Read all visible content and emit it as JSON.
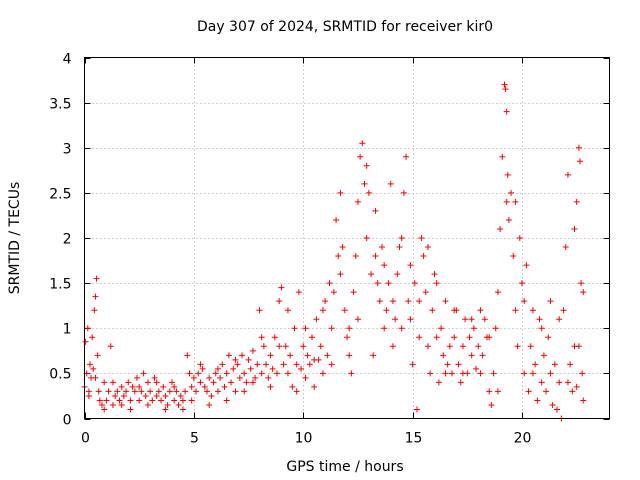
{
  "chart_data": {
    "type": "scatter",
    "title": "Day 307 of 2024, SRMTID for receiver kir0",
    "xlabel": "GPS time / hours",
    "ylabel": "SRMTID / TECUs",
    "xlim": [
      0,
      24.0
    ],
    "ylim": [
      0,
      4
    ],
    "xticks": [
      0,
      5,
      10,
      15,
      20
    ],
    "xtick_labels": [
      "0",
      "5",
      "10",
      "15",
      "20"
    ],
    "yticks": [
      0,
      0.5,
      1,
      1.5,
      2,
      2.5,
      3,
      3.5,
      4
    ],
    "ytick_labels": [
      "0",
      "0.5",
      "1",
      "1.5",
      "2",
      "2.5",
      "3",
      "3.5",
      "4"
    ],
    "grid": true,
    "marker": "+",
    "color": "#ff0000",
    "series": [
      {
        "name": "kir0",
        "points": [
          [
            0.0,
            0.35
          ],
          [
            0.05,
            0.85
          ],
          [
            0.1,
            0.5
          ],
          [
            0.15,
            1.0
          ],
          [
            0.2,
            0.3
          ],
          [
            0.25,
            0.6
          ],
          [
            0.3,
            0.45
          ],
          [
            0.35,
            0.9
          ],
          [
            0.4,
            0.55
          ],
          [
            0.45,
            1.2
          ],
          [
            0.5,
            1.35
          ],
          [
            0.55,
            1.55
          ],
          [
            0.6,
            0.7
          ],
          [
            0.65,
            0.3
          ],
          [
            0.7,
            0.2
          ],
          [
            0.8,
            0.15
          ],
          [
            0.9,
            0.1
          ],
          [
            1.0,
            0.2
          ],
          [
            1.1,
            0.3
          ],
          [
            1.2,
            0.8
          ],
          [
            1.3,
            0.4
          ],
          [
            1.4,
            0.25
          ],
          [
            1.5,
            0.3
          ],
          [
            1.6,
            0.2
          ],
          [
            1.7,
            0.35
          ],
          [
            1.8,
            0.25
          ],
          [
            1.9,
            0.3
          ],
          [
            2.0,
            0.4
          ],
          [
            2.1,
            0.2
          ],
          [
            2.2,
            0.35
          ],
          [
            2.3,
            0.3
          ],
          [
            2.4,
            0.45
          ],
          [
            2.5,
            0.2
          ],
          [
            2.6,
            0.3
          ],
          [
            2.7,
            0.5
          ],
          [
            2.8,
            0.25
          ],
          [
            2.9,
            0.4
          ],
          [
            3.0,
            0.3
          ],
          [
            3.1,
            0.2
          ],
          [
            3.2,
            0.45
          ],
          [
            3.3,
            0.25
          ],
          [
            3.4,
            0.3
          ],
          [
            3.5,
            0.2
          ],
          [
            3.6,
            0.35
          ],
          [
            3.7,
            0.25
          ],
          [
            3.8,
            0.15
          ],
          [
            3.9,
            0.3
          ],
          [
            4.0,
            0.4
          ],
          [
            4.1,
            0.2
          ],
          [
            4.2,
            0.3
          ],
          [
            4.3,
            0.15
          ],
          [
            4.4,
            0.25
          ],
          [
            4.5,
            0.2
          ],
          [
            4.6,
            0.3
          ],
          [
            4.7,
            0.7
          ],
          [
            4.8,
            0.5
          ],
          [
            4.9,
            0.35
          ],
          [
            5.0,
            0.45
          ],
          [
            5.1,
            0.3
          ],
          [
            5.2,
            0.5
          ],
          [
            5.3,
            0.4
          ],
          [
            5.4,
            0.55
          ],
          [
            5.5,
            0.35
          ],
          [
            5.6,
            0.3
          ],
          [
            5.7,
            0.45
          ],
          [
            5.8,
            0.25
          ],
          [
            5.9,
            0.4
          ],
          [
            6.0,
            0.5
          ],
          [
            6.1,
            0.3
          ],
          [
            6.2,
            0.45
          ],
          [
            6.3,
            0.6
          ],
          [
            6.4,
            0.35
          ],
          [
            6.5,
            0.5
          ],
          [
            6.6,
            0.7
          ],
          [
            6.7,
            0.4
          ],
          [
            6.8,
            0.55
          ],
          [
            6.9,
            0.3
          ],
          [
            7.0,
            0.6
          ],
          [
            7.1,
            0.45
          ],
          [
            7.2,
            0.7
          ],
          [
            7.3,
            0.5
          ],
          [
            7.4,
            0.4
          ],
          [
            7.5,
            0.65
          ],
          [
            7.6,
            0.55
          ],
          [
            7.7,
            0.75
          ],
          [
            7.8,
            0.45
          ],
          [
            7.9,
            0.6
          ],
          [
            8.0,
            1.2
          ],
          [
            8.1,
            0.5
          ],
          [
            8.2,
            0.8
          ],
          [
            8.3,
            0.6
          ],
          [
            8.4,
            0.45
          ],
          [
            8.5,
            0.7
          ],
          [
            8.6,
            0.55
          ],
          [
            8.7,
            0.9
          ],
          [
            8.8,
            0.5
          ],
          [
            8.9,
            1.3
          ],
          [
            9.0,
            1.45
          ],
          [
            9.1,
            0.6
          ],
          [
            9.2,
            0.8
          ],
          [
            9.3,
            0.5
          ],
          [
            9.4,
            0.7
          ],
          [
            9.5,
            0.35
          ],
          [
            9.6,
            1.0
          ],
          [
            9.7,
            0.6
          ],
          [
            9.8,
            1.4
          ],
          [
            9.9,
            0.55
          ],
          [
            10.0,
            0.8
          ],
          [
            10.1,
            0.45
          ],
          [
            10.2,
            0.7
          ],
          [
            10.3,
            0.6
          ],
          [
            10.4,
            0.9
          ],
          [
            10.5,
            0.35
          ],
          [
            10.6,
            1.1
          ],
          [
            10.7,
            0.65
          ],
          [
            10.8,
            0.8
          ],
          [
            10.9,
            0.5
          ],
          [
            11.0,
            1.3
          ],
          [
            11.1,
            0.7
          ],
          [
            11.2,
            1.5
          ],
          [
            11.3,
            1.0
          ],
          [
            11.4,
            1.4
          ],
          [
            11.5,
            2.2
          ],
          [
            11.6,
            1.8
          ],
          [
            11.7,
            1.6
          ],
          [
            11.8,
            1.9
          ],
          [
            11.9,
            1.2
          ],
          [
            12.0,
            0.9
          ],
          [
            12.1,
            1.0
          ],
          [
            12.2,
            0.5
          ],
          [
            12.3,
            1.4
          ],
          [
            12.4,
            1.8
          ],
          [
            12.5,
            2.4
          ],
          [
            12.6,
            2.9
          ],
          [
            12.7,
            3.05
          ],
          [
            12.8,
            2.6
          ],
          [
            12.9,
            2.0
          ],
          [
            13.0,
            2.5
          ],
          [
            13.1,
            1.6
          ],
          [
            13.2,
            0.7
          ],
          [
            13.3,
            1.8
          ],
          [
            13.4,
            1.5
          ],
          [
            13.5,
            1.3
          ],
          [
            13.6,
            1.9
          ],
          [
            13.7,
            1.0
          ],
          [
            13.8,
            1.2
          ],
          [
            13.9,
            1.5
          ],
          [
            14.0,
            2.6
          ],
          [
            14.1,
            1.3
          ],
          [
            14.2,
            1.1
          ],
          [
            14.3,
            1.6
          ],
          [
            14.4,
            1.9
          ],
          [
            14.5,
            1.0
          ],
          [
            14.6,
            2.5
          ],
          [
            14.7,
            2.9
          ],
          [
            14.8,
            1.3
          ],
          [
            14.9,
            1.1
          ],
          [
            15.0,
            0.6
          ],
          [
            15.1,
            1.5
          ],
          [
            15.2,
            0.1
          ],
          [
            15.3,
            0.9
          ],
          [
            15.4,
            2.0
          ],
          [
            15.5,
            1.8
          ],
          [
            15.6,
            1.4
          ],
          [
            15.7,
            0.8
          ],
          [
            15.8,
            0.5
          ],
          [
            15.9,
            1.2
          ],
          [
            16.0,
            1.6
          ],
          [
            16.1,
            0.9
          ],
          [
            16.2,
            0.4
          ],
          [
            16.3,
            1.0
          ],
          [
            16.4,
            0.7
          ],
          [
            16.5,
            1.3
          ],
          [
            16.6,
            0.6
          ],
          [
            16.7,
            0.8
          ],
          [
            16.8,
            0.5
          ],
          [
            16.9,
            0.9
          ],
          [
            17.0,
            1.2
          ],
          [
            17.1,
            0.6
          ],
          [
            17.2,
            0.4
          ],
          [
            17.3,
            0.8
          ],
          [
            17.4,
            1.1
          ],
          [
            17.5,
            0.5
          ],
          [
            17.6,
            0.9
          ],
          [
            17.7,
            0.7
          ],
          [
            17.8,
            1.0
          ],
          [
            17.9,
            0.55
          ],
          [
            18.0,
            0.8
          ],
          [
            18.1,
            1.2
          ],
          [
            18.2,
            0.7
          ],
          [
            18.3,
            1.1
          ],
          [
            18.4,
            0.9
          ],
          [
            18.5,
            0.3
          ],
          [
            18.6,
            0.15
          ],
          [
            18.7,
            0.5
          ],
          [
            18.8,
            1.0
          ],
          [
            18.9,
            1.4
          ],
          [
            19.0,
            2.1
          ],
          [
            19.1,
            2.9
          ],
          [
            19.2,
            3.7
          ],
          [
            19.25,
            3.65
          ],
          [
            19.3,
            3.4
          ],
          [
            19.35,
            2.7
          ],
          [
            19.4,
            2.2
          ],
          [
            19.5,
            2.5
          ],
          [
            19.6,
            1.8
          ],
          [
            19.7,
            1.2
          ],
          [
            19.8,
            0.8
          ],
          [
            19.9,
            2.0
          ],
          [
            20.0,
            1.5
          ],
          [
            20.1,
            0.5
          ],
          [
            20.2,
            1.7
          ],
          [
            20.3,
            0.3
          ],
          [
            20.4,
            0.8
          ],
          [
            20.5,
            1.2
          ],
          [
            20.6,
            0.6
          ],
          [
            20.7,
            0.2
          ],
          [
            20.8,
            1.1
          ],
          [
            20.9,
            0.4
          ],
          [
            21.0,
            0.7
          ],
          [
            21.1,
            0.3
          ],
          [
            21.2,
            0.9
          ],
          [
            21.3,
            0.5
          ],
          [
            21.4,
            0.15
          ],
          [
            21.5,
            0.6
          ],
          [
            21.6,
            0.1
          ],
          [
            21.7,
            0.4
          ],
          [
            21.8,
            0.0
          ],
          [
            21.9,
            1.2
          ],
          [
            22.0,
            1.9
          ],
          [
            22.1,
            2.7
          ],
          [
            22.2,
            0.6
          ],
          [
            22.3,
            0.3
          ],
          [
            22.4,
            0.8
          ],
          [
            22.5,
            2.4
          ],
          [
            22.6,
            3.0
          ],
          [
            22.65,
            2.85
          ],
          [
            22.7,
            1.5
          ],
          [
            22.75,
            0.5
          ],
          [
            22.8,
            0.2
          ],
          [
            0.2,
            0.25
          ],
          [
            0.5,
            0.45
          ],
          [
            0.9,
            0.4
          ],
          [
            1.3,
            0.15
          ],
          [
            1.7,
            0.15
          ],
          [
            2.1,
            0.1
          ],
          [
            2.5,
            0.35
          ],
          [
            2.9,
            0.15
          ],
          [
            3.3,
            0.4
          ],
          [
            3.7,
            0.1
          ],
          [
            4.1,
            0.35
          ],
          [
            4.5,
            0.1
          ],
          [
            4.9,
            0.2
          ],
          [
            5.3,
            0.6
          ],
          [
            5.7,
            0.15
          ],
          [
            6.1,
            0.55
          ],
          [
            6.5,
            0.2
          ],
          [
            6.9,
            0.65
          ],
          [
            7.3,
            0.3
          ],
          [
            7.7,
            0.4
          ],
          [
            8.1,
            0.9
          ],
          [
            8.5,
            0.35
          ],
          [
            8.9,
            0.8
          ],
          [
            9.3,
            1.2
          ],
          [
            9.7,
            0.3
          ],
          [
            10.1,
            1.0
          ],
          [
            10.5,
            0.65
          ],
          [
            10.9,
            1.2
          ],
          [
            11.3,
            0.6
          ],
          [
            11.7,
            2.5
          ],
          [
            12.1,
            0.7
          ],
          [
            12.5,
            1.1
          ],
          [
            12.9,
            2.8
          ],
          [
            13.3,
            2.3
          ],
          [
            13.7,
            1.7
          ],
          [
            14.1,
            0.8
          ],
          [
            14.5,
            2.0
          ],
          [
            14.9,
            1.7
          ],
          [
            15.3,
            1.3
          ],
          [
            15.7,
            1.9
          ],
          [
            16.1,
            1.5
          ],
          [
            16.5,
            0.5
          ],
          [
            16.9,
            1.2
          ],
          [
            17.3,
            0.5
          ],
          [
            17.7,
            1.1
          ],
          [
            18.1,
            0.5
          ],
          [
            18.5,
            0.9
          ],
          [
            18.9,
            0.3
          ],
          [
            19.3,
            2.4
          ],
          [
            19.7,
            2.4
          ],
          [
            20.1,
            1.3
          ],
          [
            20.5,
            0.5
          ],
          [
            20.9,
            1.0
          ],
          [
            21.3,
            1.3
          ],
          [
            21.7,
            1.1
          ],
          [
            22.1,
            0.4
          ],
          [
            22.5,
            0.35
          ],
          [
            22.8,
            1.4
          ],
          [
            22.6,
            0.8
          ],
          [
            22.4,
            2.1
          ]
        ]
      }
    ]
  }
}
